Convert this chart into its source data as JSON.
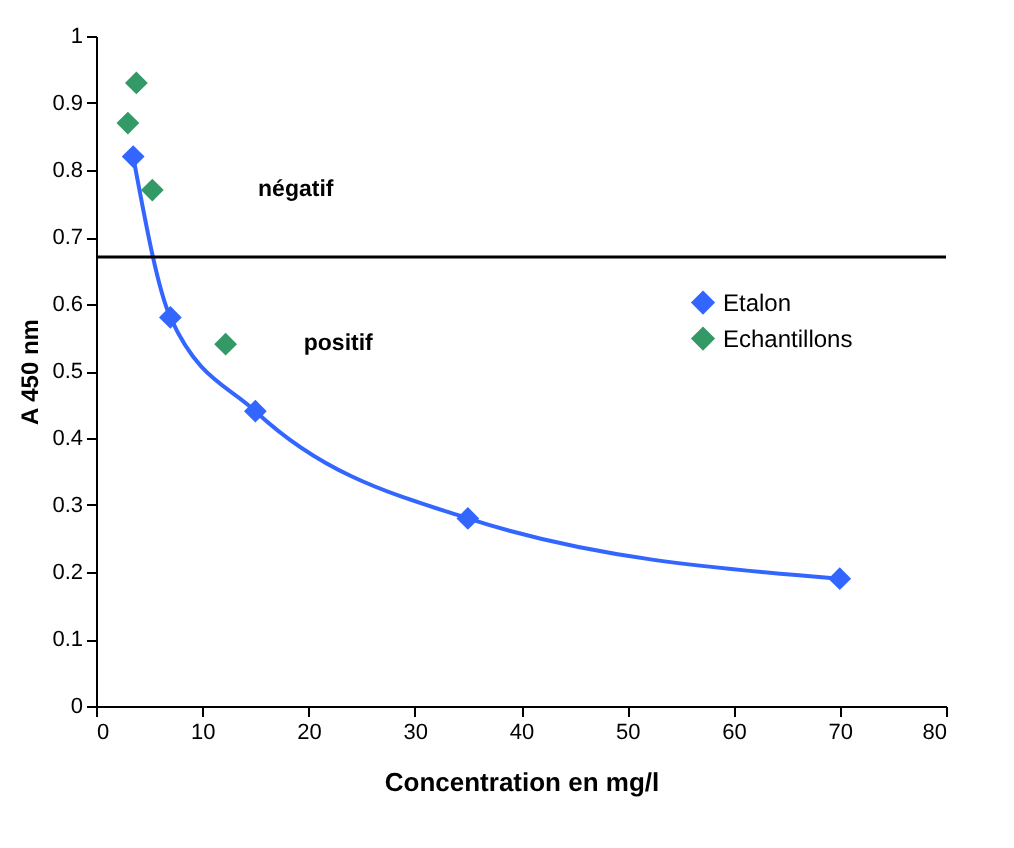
{
  "chart_data": {
    "type": "line",
    "xlabel": "Concentration en mg/l",
    "ylabel": "A 450 nm",
    "series": [
      {
        "name": "Etalon",
        "type": "line",
        "color": "#3366ff",
        "marker": "diamond",
        "x": [
          3.5,
          7,
          15,
          35,
          70
        ],
        "values": [
          0.82,
          0.58,
          0.44,
          0.28,
          0.19
        ]
      },
      {
        "name": "Echantillons",
        "type": "scatter",
        "color": "#339966",
        "marker": "diamond",
        "x": [
          3,
          3.8,
          5.3,
          12.2
        ],
        "values": [
          0.87,
          0.93,
          0.77,
          0.54
        ]
      }
    ],
    "xlim": [
      0,
      80
    ],
    "xticks": [
      0,
      10,
      20,
      30,
      40,
      50,
      60,
      70,
      80
    ],
    "ylim": [
      0,
      1
    ],
    "yticks": [
      0,
      0.1,
      0.2,
      0.3,
      0.4,
      0.5,
      0.6,
      0.7,
      0.8,
      0.9,
      1
    ],
    "ref_lines": [
      {
        "axis": "y",
        "value": 0.67,
        "color": "#000000"
      }
    ],
    "annotations": [
      "négatif",
      "positif"
    ],
    "grid": false,
    "legend": "right"
  }
}
